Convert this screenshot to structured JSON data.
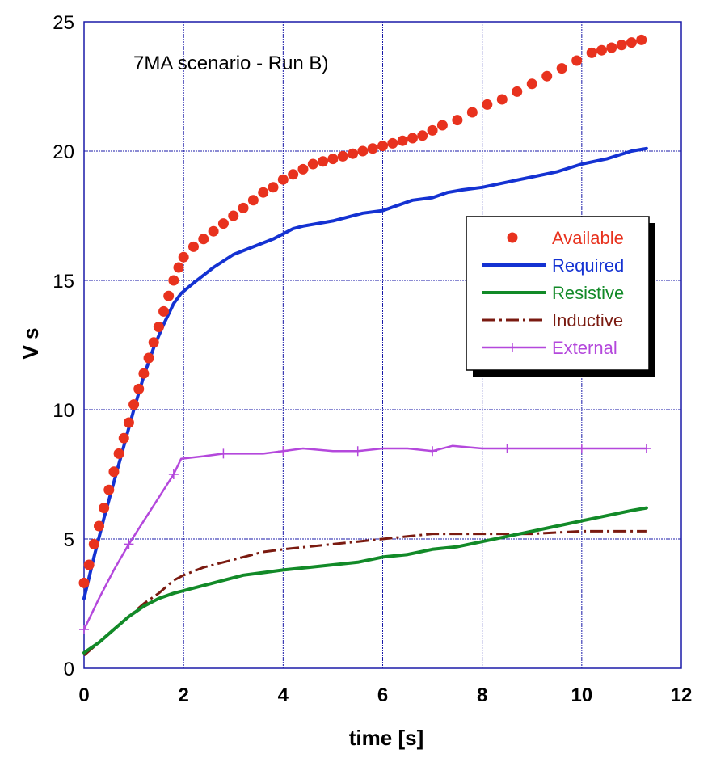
{
  "chart_data": {
    "type": "line",
    "title": "",
    "annotation": "7MA scenario - Run B)",
    "xlabel": "time [s]",
    "ylabel": "V s",
    "xlim": [
      0,
      12
    ],
    "ylim": [
      0,
      25
    ],
    "x_ticks": [
      0,
      2,
      4,
      6,
      8,
      10,
      12
    ],
    "y_ticks": [
      0,
      5,
      10,
      15,
      20,
      25
    ],
    "grid": true,
    "legend_position": "right",
    "series": [
      {
        "name": "Available",
        "style": "markers",
        "color": "#e8321e",
        "x": [
          0,
          0.1,
          0.2,
          0.3,
          0.4,
          0.5,
          0.6,
          0.7,
          0.8,
          0.9,
          1.0,
          1.1,
          1.2,
          1.3,
          1.4,
          1.5,
          1.6,
          1.7,
          1.8,
          1.9,
          2.0,
          2.2,
          2.4,
          2.6,
          2.8,
          3.0,
          3.2,
          3.4,
          3.6,
          3.8,
          4.0,
          4.2,
          4.4,
          4.6,
          4.8,
          5.0,
          5.2,
          5.4,
          5.6,
          5.8,
          6.0,
          6.2,
          6.4,
          6.6,
          6.8,
          7.0,
          7.2,
          7.5,
          7.8,
          8.1,
          8.4,
          8.7,
          9.0,
          9.3,
          9.6,
          9.9,
          10.2,
          10.4,
          10.6,
          10.8,
          11.0,
          11.2
        ],
        "y": [
          3.3,
          4.0,
          4.8,
          5.5,
          6.2,
          6.9,
          7.6,
          8.3,
          8.9,
          9.5,
          10.2,
          10.8,
          11.4,
          12.0,
          12.6,
          13.2,
          13.8,
          14.4,
          15.0,
          15.5,
          15.9,
          16.3,
          16.6,
          16.9,
          17.2,
          17.5,
          17.8,
          18.1,
          18.4,
          18.6,
          18.9,
          19.1,
          19.3,
          19.5,
          19.6,
          19.7,
          19.8,
          19.9,
          20.0,
          20.1,
          20.2,
          20.3,
          20.4,
          20.5,
          20.6,
          20.8,
          21.0,
          21.2,
          21.5,
          21.8,
          22.0,
          22.3,
          22.6,
          22.9,
          23.2,
          23.5,
          23.8,
          23.9,
          24.0,
          24.1,
          24.2,
          24.3
        ]
      },
      {
        "name": "Required",
        "style": "solid",
        "color": "#1432d2",
        "x": [
          0,
          0.2,
          0.4,
          0.6,
          0.8,
          1.0,
          1.2,
          1.4,
          1.6,
          1.8,
          1.95,
          2.2,
          2.6,
          3.0,
          3.4,
          3.8,
          4.2,
          4.4,
          5.0,
          5.6,
          6.0,
          6.6,
          7.0,
          7.3,
          7.6,
          8.0,
          8.5,
          9.0,
          9.5,
          10.0,
          10.5,
          11.0,
          11.3
        ],
        "y": [
          2.7,
          4.3,
          5.8,
          7.2,
          8.6,
          10.0,
          11.3,
          12.4,
          13.3,
          14.1,
          14.5,
          14.9,
          15.5,
          16.0,
          16.3,
          16.6,
          17.0,
          17.1,
          17.3,
          17.6,
          17.7,
          18.1,
          18.2,
          18.4,
          18.5,
          18.6,
          18.8,
          19.0,
          19.2,
          19.5,
          19.7,
          20.0,
          20.1
        ]
      },
      {
        "name": "Resistive",
        "style": "solid",
        "color": "#128a28",
        "x": [
          0,
          0.3,
          0.6,
          0.9,
          1.2,
          1.5,
          1.8,
          2.0,
          2.4,
          2.8,
          3.2,
          3.6,
          4.0,
          4.5,
          5.0,
          5.5,
          6.0,
          6.5,
          7.0,
          7.5,
          8.0,
          8.5,
          9.0,
          9.5,
          10.0,
          10.5,
          11.0,
          11.3
        ],
        "y": [
          0.6,
          1.0,
          1.5,
          2.0,
          2.4,
          2.7,
          2.9,
          3.0,
          3.2,
          3.4,
          3.6,
          3.7,
          3.8,
          3.9,
          4.0,
          4.1,
          4.3,
          4.4,
          4.6,
          4.7,
          4.9,
          5.1,
          5.3,
          5.5,
          5.7,
          5.9,
          6.1,
          6.2
        ]
      },
      {
        "name": "Inductive",
        "style": "dash-dot",
        "color": "#7a1a10",
        "x": [
          0,
          0.3,
          0.6,
          0.9,
          1.2,
          1.5,
          1.8,
          2.0,
          2.4,
          2.8,
          3.2,
          3.6,
          4.0,
          4.5,
          5.0,
          5.5,
          6.0,
          6.5,
          7.0,
          7.5,
          8.0,
          8.5,
          9.0,
          9.5,
          10.0,
          10.5,
          11.0,
          11.3
        ],
        "y": [
          0.5,
          1.0,
          1.5,
          2.0,
          2.5,
          2.9,
          3.4,
          3.6,
          3.9,
          4.1,
          4.3,
          4.5,
          4.6,
          4.7,
          4.8,
          4.9,
          5.0,
          5.1,
          5.2,
          5.2,
          5.2,
          5.2,
          5.2,
          5.25,
          5.3,
          5.3,
          5.3,
          5.3
        ]
      },
      {
        "name": "External",
        "style": "solid-plus",
        "color": "#b448dc",
        "x": [
          0,
          0.3,
          0.6,
          0.9,
          1.2,
          1.5,
          1.8,
          1.95,
          2.4,
          2.8,
          3.2,
          3.6,
          4.0,
          4.4,
          5.0,
          5.5,
          6.0,
          6.5,
          7.0,
          7.4,
          8.0,
          8.5,
          9.0,
          9.5,
          10.0,
          10.5,
          11.0,
          11.3
        ],
        "y": [
          1.5,
          2.7,
          3.8,
          4.8,
          5.7,
          6.6,
          7.5,
          8.1,
          8.2,
          8.3,
          8.3,
          8.3,
          8.4,
          8.5,
          8.4,
          8.4,
          8.5,
          8.5,
          8.4,
          8.6,
          8.5,
          8.5,
          8.5,
          8.5,
          8.5,
          8.5,
          8.5,
          8.5
        ]
      }
    ]
  }
}
